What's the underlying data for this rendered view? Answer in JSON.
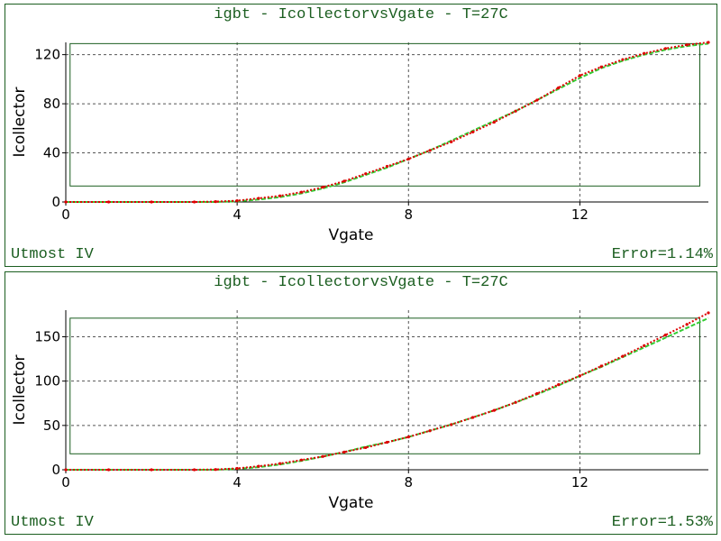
{
  "panels": [
    {
      "title": "igbt - IcollectorvsVgate - T=27C",
      "footer_left": "Utmost IV",
      "footer_right": "Error=1.14%"
    },
    {
      "title": "igbt - IcollectorvsVgate - T=27C",
      "footer_left": "Utmost IV",
      "footer_right": "Error=1.53%"
    }
  ],
  "colors": {
    "frame": "#1b5e20",
    "measured": "#33cc33",
    "simulated": "#dd0000",
    "grid": "#555555"
  },
  "chart_data": [
    {
      "type": "line",
      "title": "igbt - IcollectorvsVgate - T=27C",
      "xlabel": "Vgate",
      "ylabel": "Icollector",
      "xlim": [
        0,
        15
      ],
      "ylim": [
        0,
        130
      ],
      "xticks": [
        "0",
        "4",
        "8",
        "12"
      ],
      "xtick_values": [
        0,
        4,
        8,
        12
      ],
      "yticks": [
        "0",
        "40",
        "80",
        "120"
      ],
      "ytick_values": [
        0,
        40,
        80,
        120
      ],
      "grid": true,
      "series": [
        {
          "style": "measured",
          "x": [
            0,
            1,
            2,
            3,
            3.5,
            4,
            4.5,
            5,
            5.5,
            6,
            6.5,
            7,
            7.5,
            8,
            8.5,
            9,
            9.5,
            10,
            10.5,
            11,
            11.5,
            12,
            12.5,
            13,
            13.5,
            14,
            14.5,
            15
          ],
          "y": [
            0,
            0,
            0,
            0,
            0,
            0.5,
            2,
            4,
            7,
            11,
            16,
            22,
            28,
            35,
            42,
            50,
            58,
            66,
            74,
            83,
            92,
            101,
            109,
            115,
            120,
            124,
            127,
            129
          ]
        },
        {
          "style": "simulated",
          "x": [
            0,
            1,
            2,
            3,
            3.5,
            4,
            4.5,
            5,
            5.5,
            6,
            6.5,
            7,
            7.5,
            8,
            8.5,
            9,
            9.5,
            10,
            10.5,
            11,
            11.5,
            12,
            12.5,
            13,
            13.5,
            14,
            14.5,
            15
          ],
          "y": [
            0,
            0,
            0,
            0,
            0.3,
            1,
            3,
            5,
            8,
            12,
            17,
            23,
            29,
            35,
            42,
            49,
            57,
            65,
            74,
            83,
            93,
            103,
            110,
            116,
            121,
            125,
            128,
            130
          ]
        }
      ]
    },
    {
      "type": "line",
      "title": "igbt - IcollectorvsVgate - T=27C",
      "xlabel": "Vgate",
      "ylabel": "Icollector",
      "xlim": [
        0,
        15
      ],
      "ylim": [
        0,
        180
      ],
      "xticks": [
        "0",
        "4",
        "8",
        "12"
      ],
      "xtick_values": [
        0,
        4,
        8,
        12
      ],
      "yticks": [
        "0",
        "50",
        "100",
        "150"
      ],
      "ytick_values": [
        0,
        50,
        100,
        150
      ],
      "grid": true,
      "series": [
        {
          "style": "measured",
          "x": [
            0,
            1,
            2,
            3,
            3.5,
            4,
            4.5,
            5,
            5.5,
            6,
            6.5,
            7,
            7.5,
            8,
            8.5,
            9,
            9.5,
            10,
            10.5,
            11,
            11.5,
            12,
            12.5,
            13,
            13.5,
            14,
            14.5,
            15
          ],
          "y": [
            0,
            0,
            0,
            0,
            0,
            1,
            3,
            6,
            10,
            15,
            20,
            26,
            31,
            37,
            44,
            51,
            59,
            67,
            76,
            85,
            95,
            106,
            116,
            127,
            138,
            149,
            160,
            171
          ]
        },
        {
          "style": "simulated",
          "x": [
            0,
            1,
            2,
            3,
            3.5,
            4,
            4.5,
            5,
            5.5,
            6,
            6.5,
            7,
            7.5,
            8,
            8.5,
            9,
            9.5,
            10,
            10.5,
            11,
            11.5,
            12,
            12.5,
            13,
            13.5,
            14,
            14.5,
            15
          ],
          "y": [
            0,
            0,
            0,
            0,
            0.3,
            1.5,
            4,
            7,
            11,
            15,
            20,
            25,
            31,
            37,
            44,
            51,
            59,
            67,
            76,
            86,
            96,
            106,
            117,
            128,
            140,
            152,
            164,
            177
          ]
        }
      ]
    }
  ]
}
